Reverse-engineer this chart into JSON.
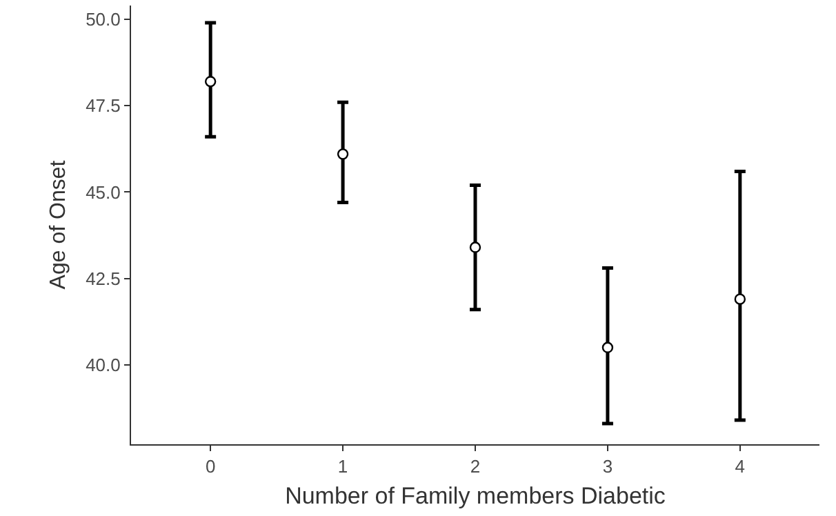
{
  "chart_data": {
    "type": "scatter",
    "xlabel": "Number of Family members Diabetic",
    "ylabel": "Age of Onset",
    "categories": [
      "0",
      "1",
      "2",
      "3",
      "4"
    ],
    "values": [
      48.2,
      46.1,
      43.4,
      40.5,
      41.9
    ],
    "errors": [
      [
        46.6,
        49.9
      ],
      [
        44.7,
        47.6
      ],
      [
        41.6,
        45.2
      ],
      [
        38.3,
        42.8
      ],
      [
        38.4,
        45.6
      ]
    ],
    "color": "#000000",
    "marker": "circle",
    "grid": false,
    "ylim": [
      37.7,
      50.4
    ],
    "yticks": [
      {
        "value": 40,
        "label": "40.0"
      },
      {
        "value": 42.5,
        "label": "42.5"
      },
      {
        "value": 45,
        "label": "45.0"
      },
      {
        "value": 47.5,
        "label": "47.5"
      },
      {
        "value": 50,
        "label": "50.0"
      }
    ]
  }
}
